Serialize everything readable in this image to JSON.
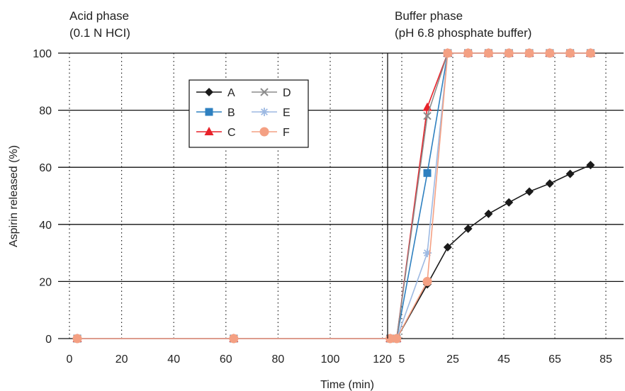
{
  "chart_data": {
    "type": "line",
    "xlabel": "Time (min)",
    "ylabel": "Aspirin released (%)",
    "ylim": [
      0,
      100
    ],
    "y_ticks": [
      0,
      20,
      40,
      60,
      80,
      100
    ],
    "grid": "horizontal solid, vertical dotted",
    "legend_position": "top-left inside plot",
    "phases": [
      {
        "title": "Acid phase",
        "subtitle": "(0.1 N HCI)",
        "xlim": [
          0,
          125
        ],
        "x_ticks": [
          0,
          20,
          40,
          60,
          80,
          100,
          120
        ]
      },
      {
        "title": "Buffer phase",
        "subtitle": "(pH 6.8 phosphate buffer)",
        "xlim": [
          0,
          90
        ],
        "x_ticks": [
          5,
          25,
          45,
          65,
          85
        ]
      }
    ],
    "series": [
      {
        "name": "A",
        "color": "#1a1a1a",
        "marker": "diamond",
        "acid": [
          [
            3,
            0
          ],
          [
            63,
            0
          ],
          [
            123,
            0
          ]
        ],
        "buffer": [
          [
            3,
            0
          ],
          [
            15,
            19
          ],
          [
            23,
            32
          ],
          [
            31,
            38.5
          ],
          [
            39,
            43.7
          ],
          [
            47,
            47.7
          ],
          [
            55,
            51.5
          ],
          [
            63,
            54.3
          ],
          [
            71,
            57.7
          ],
          [
            79,
            60.8
          ]
        ]
      },
      {
        "name": "B",
        "color": "#2e80c0",
        "marker": "square",
        "acid": [
          [
            3,
            0
          ],
          [
            63,
            0
          ],
          [
            123,
            0
          ]
        ],
        "buffer": [
          [
            3,
            0
          ],
          [
            15,
            58
          ],
          [
            23,
            100
          ],
          [
            31,
            100
          ],
          [
            39,
            100
          ],
          [
            47,
            100
          ],
          [
            55,
            100
          ],
          [
            63,
            100
          ],
          [
            71,
            100
          ],
          [
            79,
            100
          ]
        ]
      },
      {
        "name": "C",
        "color": "#e8222a",
        "marker": "triangle",
        "acid": [
          [
            3,
            0
          ],
          [
            63,
            0
          ],
          [
            123,
            0
          ]
        ],
        "buffer": [
          [
            3,
            0
          ],
          [
            15,
            81
          ],
          [
            23,
            100
          ],
          [
            31,
            100
          ],
          [
            39,
            100
          ],
          [
            47,
            100
          ],
          [
            55,
            100
          ],
          [
            63,
            100
          ],
          [
            71,
            100
          ],
          [
            79,
            100
          ]
        ]
      },
      {
        "name": "D",
        "color": "#8c8c8c",
        "marker": "x",
        "acid": [
          [
            3,
            0
          ],
          [
            63,
            0
          ],
          [
            123,
            0
          ]
        ],
        "buffer": [
          [
            3,
            0
          ],
          [
            15,
            78
          ],
          [
            23,
            100
          ],
          [
            31,
            100
          ],
          [
            39,
            100
          ],
          [
            47,
            100
          ],
          [
            55,
            100
          ],
          [
            63,
            100
          ],
          [
            71,
            100
          ],
          [
            79,
            100
          ]
        ]
      },
      {
        "name": "E",
        "color": "#9db9e2",
        "marker": "asterisk",
        "acid": [
          [
            3,
            0
          ],
          [
            63,
            0
          ],
          [
            123,
            0
          ]
        ],
        "buffer": [
          [
            3,
            0
          ],
          [
            15,
            30
          ],
          [
            23,
            100
          ],
          [
            31,
            100
          ],
          [
            39,
            100
          ],
          [
            47,
            100
          ],
          [
            55,
            100
          ],
          [
            63,
            100
          ],
          [
            71,
            100
          ],
          [
            79,
            100
          ]
        ]
      },
      {
        "name": "F",
        "color": "#f4a083",
        "marker": "circle",
        "acid": [
          [
            3,
            0
          ],
          [
            63,
            0
          ],
          [
            123,
            0
          ]
        ],
        "buffer": [
          [
            3,
            0
          ],
          [
            15,
            20
          ],
          [
            23,
            100
          ],
          [
            31,
            100
          ],
          [
            39,
            100
          ],
          [
            47,
            100
          ],
          [
            55,
            100
          ],
          [
            63,
            100
          ],
          [
            71,
            100
          ],
          [
            79,
            100
          ]
        ]
      }
    ]
  }
}
